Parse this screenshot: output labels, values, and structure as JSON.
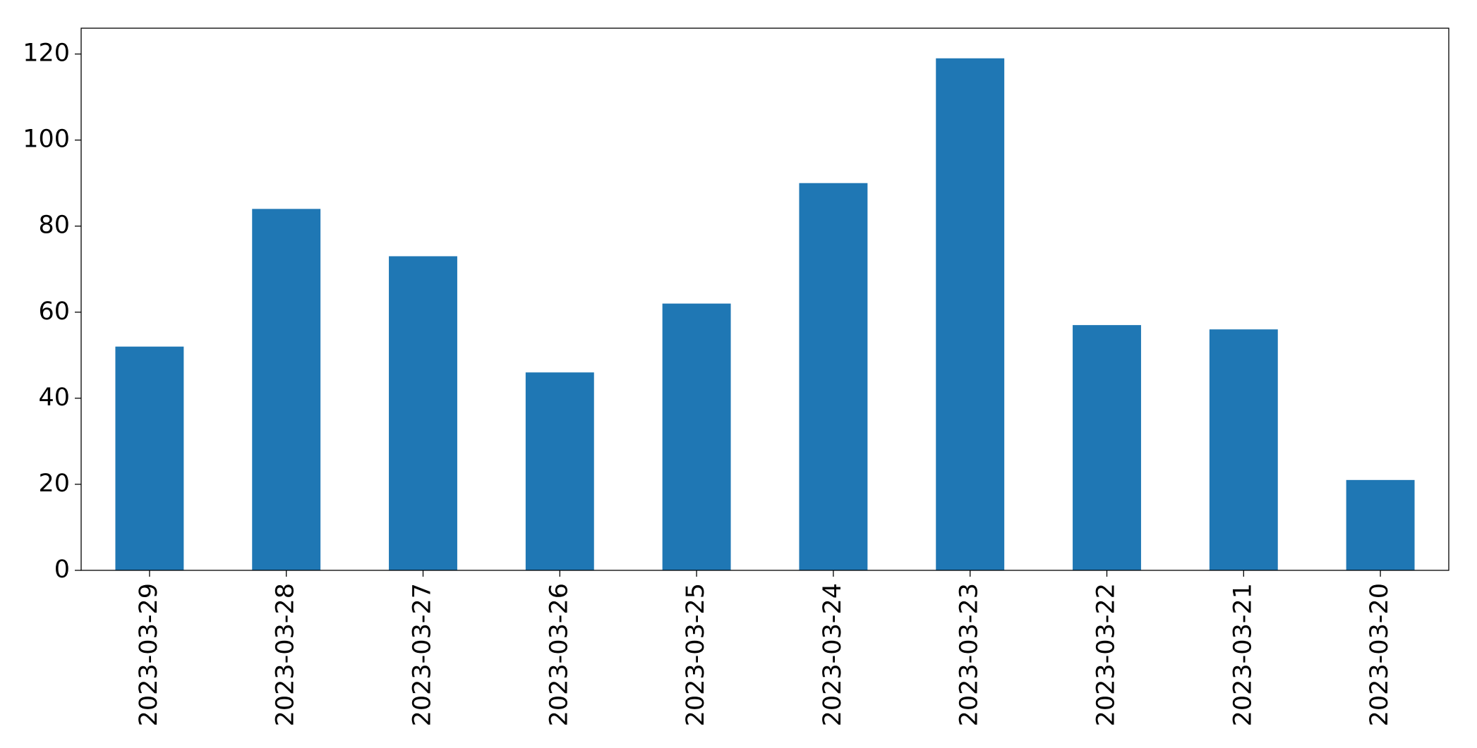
{
  "chart_data": {
    "type": "bar",
    "categories": [
      "2023-03-29",
      "2023-03-28",
      "2023-03-27",
      "2023-03-26",
      "2023-03-25",
      "2023-03-24",
      "2023-03-23",
      "2023-03-22",
      "2023-03-21",
      "2023-03-20"
    ],
    "values": [
      52,
      84,
      73,
      46,
      62,
      90,
      119,
      57,
      56,
      21
    ],
    "color": "#1f77b4",
    "ylim": [
      0,
      126
    ],
    "yticks": [
      0,
      20,
      40,
      60,
      80,
      100,
      120
    ],
    "grid": false
  }
}
